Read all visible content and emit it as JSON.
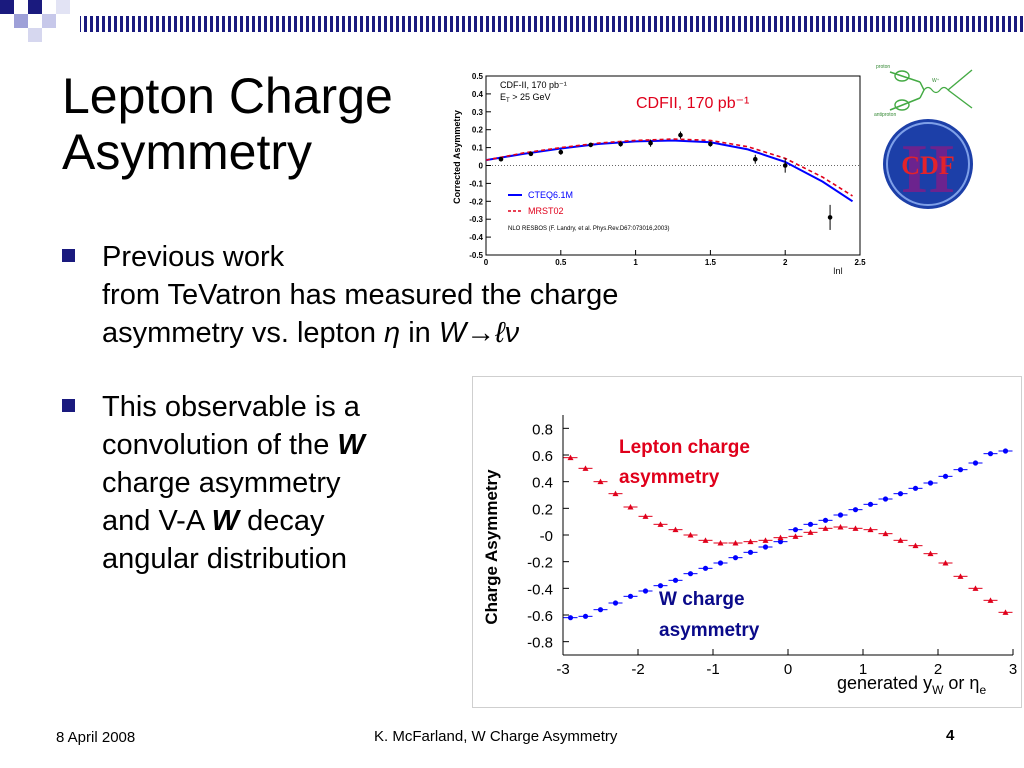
{
  "title": {
    "line1": "Lepton Charge",
    "line2": "Asymmetry"
  },
  "bullets": [
    {
      "line1": "Previous work",
      "line2": "from TeVatron has measured the charge",
      "line3_pre": "asymmetry vs. lepton ",
      "eta": "η",
      "in": " in ",
      "wlv": "W→ℓν"
    },
    {
      "line1": "This observable is a",
      "line2_pre": "convolution of the ",
      "w1": "W",
      "line3": "charge asymmetry",
      "line4_pre": "and V-A ",
      "w2": "W",
      "line4_post": " decay",
      "line5": "angular distribution"
    }
  ],
  "footer": {
    "date": "8 April 2008",
    "center": "K. McFarland, W Charge Asymmetry",
    "page": "4"
  },
  "logos": {
    "cdf_text": "CDF",
    "cdf_roman": "II",
    "feyn_proton": "proton",
    "feyn_antiproton": "antiproton",
    "feyn_w": "W⁺"
  },
  "colors": {
    "accent": "#1a1a7e",
    "red": "#e0001b",
    "blue": "#0000ff",
    "navy": "#0a0a8a"
  },
  "chart_data": [
    {
      "type": "line",
      "ylabel": "Corrected Asymmetry",
      "xlabel": "|η|",
      "xlim": [
        0,
        2.5
      ],
      "ylim": [
        -0.5,
        0.5
      ],
      "xticks": [
        "0",
        "0.5",
        "1",
        "1.5",
        "2",
        "2.5"
      ],
      "yticks": [
        "0.5",
        "0.4",
        "0.3",
        "0.2",
        "0.1",
        "0",
        "-0.1",
        "-0.2",
        "-0.3",
        "-0.4",
        "-0.5"
      ],
      "annotations": {
        "exp_line1": "CDF-II, 170 pb⁻¹",
        "exp_line2": "E",
        "exp_line2_sub": "T",
        "exp_line2_post": " > 25 GeV",
        "corner_label": "CDFII,  170 pb⁻¹",
        "nlo": "NLO RESBOS (F. Landry, et al. Phys.Rev.D67:073016,2003)"
      },
      "series": [
        {
          "name": "CTEQ6.1M",
          "style": "solid",
          "color": "#0000ff",
          "x": [
            0,
            0.25,
            0.5,
            0.75,
            1.0,
            1.25,
            1.5,
            1.75,
            2.0,
            2.25,
            2.45
          ],
          "y": [
            0.03,
            0.065,
            0.095,
            0.12,
            0.135,
            0.14,
            0.13,
            0.09,
            0.02,
            -0.09,
            -0.2
          ]
        },
        {
          "name": "MRST02",
          "style": "dashed",
          "color": "#e0001b",
          "x": [
            0,
            0.25,
            0.5,
            0.75,
            1.0,
            1.25,
            1.5,
            1.75,
            2.0,
            2.25,
            2.45
          ],
          "y": [
            0.03,
            0.07,
            0.1,
            0.125,
            0.14,
            0.148,
            0.14,
            0.105,
            0.04,
            -0.065,
            -0.17
          ]
        },
        {
          "name": "data",
          "style": "points",
          "x": [
            0.1,
            0.3,
            0.5,
            0.7,
            0.9,
            1.1,
            1.3,
            1.5,
            1.8,
            2.0,
            2.3
          ],
          "y": [
            0.035,
            0.065,
            0.075,
            0.115,
            0.12,
            0.125,
            0.17,
            0.12,
            0.035,
            0.0,
            -0.29
          ],
          "err": [
            0.01,
            0.01,
            0.015,
            0.012,
            0.015,
            0.02,
            0.02,
            0.015,
            0.025,
            0.04,
            0.07
          ]
        }
      ]
    },
    {
      "type": "scatter",
      "ylabel": "Charge Asymmetry",
      "xlabel": "generated y",
      "xlabel_sub": "W",
      "xlabel_or": " or ",
      "xlabel_eta": "η",
      "xlabel_eta_sub": "e",
      "xlim": [
        -3,
        3
      ],
      "ylim": [
        -0.9,
        0.9
      ],
      "xticks": [
        "-3",
        "-2",
        "-1",
        "0",
        "1",
        "2",
        "3"
      ],
      "yticks": [
        "0.8",
        "0.6",
        "0.4",
        "0.2",
        "-0",
        "-0.2",
        "-0.4",
        "-0.6",
        "-0.8"
      ],
      "annotations": {
        "lepton_line1": "Lepton charge",
        "lepton_line2": "asymmetry",
        "w_line1": "W charge",
        "w_line2": "asymmetry"
      },
      "series": [
        {
          "name": "W charge asymmetry",
          "color": "#0000ff",
          "x": [
            -2.9,
            -2.7,
            -2.5,
            -2.3,
            -2.1,
            -1.9,
            -1.7,
            -1.5,
            -1.3,
            -1.1,
            -0.9,
            -0.7,
            -0.5,
            -0.3,
            -0.1,
            0.1,
            0.3,
            0.5,
            0.7,
            0.9,
            1.1,
            1.3,
            1.5,
            1.7,
            1.9,
            2.1,
            2.3,
            2.5,
            2.7,
            2.9
          ],
          "y": [
            -0.62,
            -0.61,
            -0.56,
            -0.51,
            -0.46,
            -0.42,
            -0.38,
            -0.34,
            -0.29,
            -0.25,
            -0.21,
            -0.17,
            -0.13,
            -0.09,
            -0.05,
            0.04,
            0.08,
            0.11,
            0.15,
            0.19,
            0.23,
            0.27,
            0.31,
            0.35,
            0.39,
            0.44,
            0.49,
            0.54,
            0.61,
            0.63
          ]
        },
        {
          "name": "Lepton charge asymmetry",
          "color": "#e0001b",
          "x": [
            -2.9,
            -2.7,
            -2.5,
            -2.3,
            -2.1,
            -1.9,
            -1.7,
            -1.5,
            -1.3,
            -1.1,
            -0.9,
            -0.7,
            -0.5,
            -0.3,
            -0.1,
            0.1,
            0.3,
            0.5,
            0.7,
            0.9,
            1.1,
            1.3,
            1.5,
            1.7,
            1.9,
            2.1,
            2.3,
            2.5,
            2.7,
            2.9
          ],
          "y": [
            0.58,
            0.5,
            0.4,
            0.31,
            0.21,
            0.14,
            0.08,
            0.04,
            0.0,
            -0.04,
            -0.06,
            -0.06,
            -0.05,
            -0.04,
            -0.02,
            -0.01,
            0.02,
            0.05,
            0.06,
            0.05,
            0.04,
            0.01,
            -0.04,
            -0.08,
            -0.14,
            -0.21,
            -0.31,
            -0.4,
            -0.49,
            -0.58
          ]
        }
      ]
    }
  ]
}
